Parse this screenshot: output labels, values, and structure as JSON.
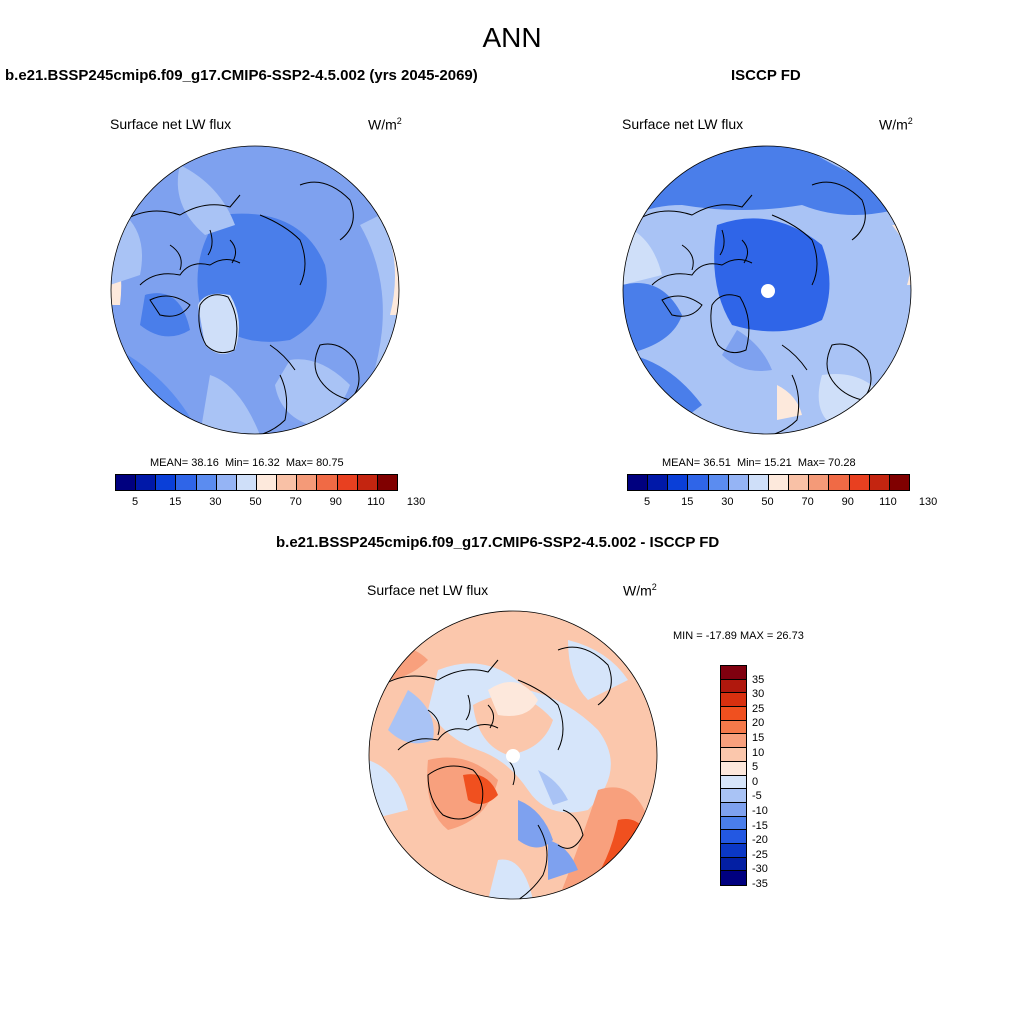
{
  "title": "ANN",
  "colors": {
    "abs_scale": [
      "#00007f",
      "#0018a8",
      "#0a3fd8",
      "#2f65e8",
      "#5b8cf0",
      "#95b4f5",
      "#cfdff9",
      "#fde9dc",
      "#f9c1a6",
      "#f49a78",
      "#f06a45",
      "#e84020",
      "#c42510",
      "#800000"
    ],
    "diff_scale": [
      "#80000f",
      "#b0180d",
      "#d8300f",
      "#f0501f",
      "#f5794a",
      "#f8a07d",
      "#fbc7ac",
      "#fde8dc",
      "#d6e5fa",
      "#a9c3f5",
      "#7ea1ef",
      "#4a7eea",
      "#2358e2",
      "#0b38c6",
      "#031fa3",
      "#000080"
    ]
  },
  "panels": {
    "left": {
      "title": "b.e21.BSSP245cmip6.f09_g17.CMIP6-SSP2-4.5.002 (yrs 2045-2069)",
      "field": "Surface net LW flux",
      "units": "W/m",
      "units_sup": "2",
      "stats": {
        "mean_label": "MEAN=",
        "mean": "38.16",
        "min_label": "Min=",
        "min": "16.32",
        "max_label": "Max=",
        "max": "80.75"
      },
      "ticks": [
        "5",
        "15",
        "30",
        "50",
        "70",
        "90",
        "110",
        "130"
      ]
    },
    "right": {
      "title": "ISCCP FD",
      "field": "Surface net LW flux",
      "units": "W/m",
      "units_sup": "2",
      "stats": {
        "mean_label": "MEAN=",
        "mean": "36.51",
        "min_label": "Min=",
        "min": "15.21",
        "max_label": "Max=",
        "max": "70.28"
      },
      "ticks": [
        "5",
        "15",
        "30",
        "50",
        "70",
        "90",
        "110",
        "130"
      ]
    },
    "diff": {
      "title": "b.e21.BSSP245cmip6.f09_g17.CMIP6-SSP2-4.5.002 - ISCCP FD",
      "field": "Surface net LW flux",
      "units": "W/m",
      "units_sup": "2",
      "stats": "MIN = -17.89 MAX =  26.73",
      "ticks": [
        "35",
        "30",
        "25",
        "20",
        "15",
        "10",
        "5",
        "0",
        "-5",
        "-10",
        "-15",
        "-20",
        "-25",
        "-30",
        "-35"
      ]
    }
  }
}
